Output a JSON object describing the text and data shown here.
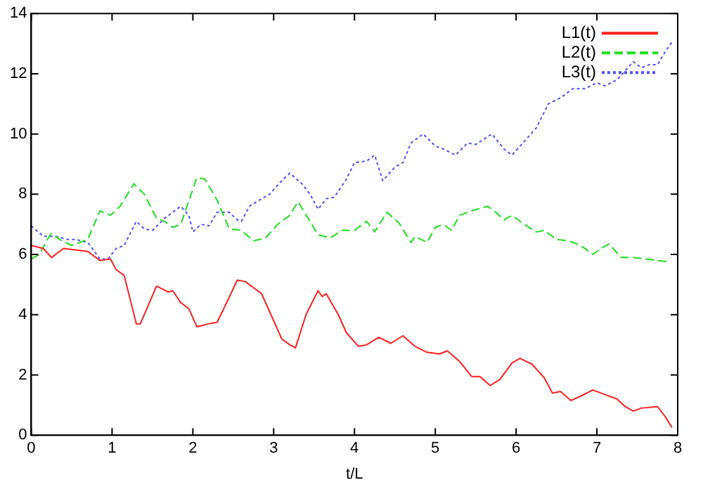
{
  "chart_data": {
    "type": "line",
    "xlabel": "t/L",
    "xlim": [
      0,
      8
    ],
    "xticks": [
      0,
      1,
      2,
      3,
      4,
      5,
      6,
      7,
      8
    ],
    "ylim": [
      0,
      14
    ],
    "yticks": [
      0,
      2,
      4,
      6,
      8,
      10,
      12,
      14
    ],
    "legend": "top right",
    "marker": "none",
    "grid": false,
    "series": [
      {
        "name": "L1(t)",
        "color": "#ff2020",
        "line_style": "solid",
        "x": [
          0,
          0.15,
          0.25,
          0.4,
          0.7,
          0.85,
          0.98,
          1.05,
          1.15,
          1.3,
          1.35,
          1.55,
          1.7,
          1.75,
          1.85,
          1.95,
          2.05,
          2.2,
          2.3,
          2.4,
          2.55,
          2.65,
          2.75,
          2.85,
          3.0,
          3.1,
          3.2,
          3.27,
          3.4,
          3.55,
          3.6,
          3.65,
          3.8,
          3.9,
          4.05,
          4.15,
          4.3,
          4.45,
          4.6,
          4.75,
          4.9,
          5.05,
          5.15,
          5.3,
          5.45,
          5.55,
          5.68,
          5.8,
          5.95,
          6.05,
          6.2,
          6.35,
          6.45,
          6.55,
          6.68,
          6.8,
          6.95,
          7.1,
          7.25,
          7.35,
          7.45,
          7.55,
          7.75,
          7.85,
          7.93
        ],
        "values": [
          6.3,
          6.2,
          5.9,
          6.2,
          6.1,
          5.8,
          5.85,
          5.5,
          5.3,
          3.7,
          3.7,
          4.95,
          4.75,
          4.8,
          4.4,
          4.2,
          3.6,
          3.7,
          3.75,
          4.3,
          5.15,
          5.1,
          4.9,
          4.7,
          3.8,
          3.2,
          3.0,
          2.9,
          4.0,
          4.8,
          4.6,
          4.7,
          4.0,
          3.4,
          2.95,
          3.0,
          3.25,
          3.05,
          3.3,
          2.95,
          2.75,
          2.7,
          2.8,
          2.45,
          1.95,
          1.95,
          1.65,
          1.85,
          2.4,
          2.55,
          2.35,
          1.9,
          1.4,
          1.45,
          1.15,
          1.3,
          1.5,
          1.35,
          1.2,
          0.95,
          0.8,
          0.9,
          0.95,
          0.6,
          0.25
        ]
      },
      {
        "name": "L2(t)",
        "color": "#20e020",
        "line_style": "dashed",
        "x": [
          0,
          0.1,
          0.2,
          0.25,
          0.35,
          0.5,
          0.7,
          0.85,
          0.98,
          1.1,
          1.27,
          1.4,
          1.55,
          1.65,
          1.75,
          1.85,
          2.05,
          2.15,
          2.3,
          2.45,
          2.6,
          2.75,
          2.9,
          3.05,
          3.2,
          3.3,
          3.45,
          3.55,
          3.7,
          3.85,
          4.0,
          4.15,
          4.25,
          4.4,
          4.55,
          4.7,
          4.75,
          4.9,
          5.0,
          5.1,
          5.2,
          5.3,
          5.45,
          5.65,
          5.75,
          5.85,
          5.95,
          6.1,
          6.25,
          6.35,
          6.5,
          6.65,
          6.8,
          6.95,
          7.05,
          7.15,
          7.3,
          7.45,
          7.6,
          7.75,
          7.9
        ],
        "values": [
          5.85,
          6.0,
          6.5,
          6.7,
          6.5,
          6.3,
          6.5,
          7.45,
          7.3,
          7.6,
          8.35,
          8.0,
          7.2,
          7.1,
          6.9,
          7.0,
          8.55,
          8.5,
          7.8,
          6.85,
          6.8,
          6.45,
          6.55,
          7.0,
          7.3,
          7.75,
          7.1,
          6.65,
          6.55,
          6.8,
          6.8,
          7.1,
          6.75,
          7.4,
          7.05,
          6.4,
          6.6,
          6.4,
          6.9,
          7.0,
          6.8,
          7.3,
          7.45,
          7.6,
          7.4,
          7.15,
          7.3,
          7.0,
          6.75,
          6.8,
          6.5,
          6.45,
          6.3,
          6.0,
          6.2,
          6.35,
          5.9,
          5.9,
          5.85,
          5.8,
          5.75
        ]
      },
      {
        "name": "L3(t)",
        "color": "#5050ff",
        "line_style": "dotted",
        "x": [
          0,
          0.15,
          0.3,
          0.45,
          0.55,
          0.7,
          0.85,
          0.95,
          1.05,
          1.15,
          1.3,
          1.4,
          1.5,
          1.65,
          1.85,
          1.95,
          2.0,
          2.1,
          2.2,
          2.3,
          2.45,
          2.55,
          2.6,
          2.7,
          2.85,
          2.95,
          3.1,
          3.2,
          3.35,
          3.45,
          3.55,
          3.65,
          3.75,
          3.9,
          4.0,
          4.15,
          4.25,
          4.35,
          4.5,
          4.6,
          4.7,
          4.85,
          5.0,
          5.1,
          5.25,
          5.4,
          5.5,
          5.7,
          5.85,
          5.95,
          6.1,
          6.25,
          6.4,
          6.55,
          6.7,
          6.85,
          7.0,
          7.1,
          7.25,
          7.35,
          7.45,
          7.55,
          7.65,
          7.75,
          7.85,
          7.93
        ],
        "values": [
          6.95,
          6.6,
          6.6,
          6.5,
          6.5,
          6.4,
          5.85,
          5.85,
          6.2,
          6.3,
          7.1,
          6.85,
          6.8,
          7.2,
          7.6,
          7.3,
          6.75,
          7.0,
          6.95,
          7.4,
          7.4,
          7.15,
          7.1,
          7.6,
          7.85,
          8.0,
          8.45,
          8.7,
          8.35,
          8.0,
          7.5,
          7.85,
          7.9,
          8.5,
          9.05,
          9.1,
          9.3,
          8.45,
          8.9,
          9.05,
          9.7,
          10.0,
          9.6,
          9.5,
          9.3,
          9.7,
          9.65,
          10.0,
          9.5,
          9.3,
          9.75,
          10.2,
          11.0,
          11.2,
          11.5,
          11.5,
          11.7,
          11.6,
          11.8,
          12.1,
          12.4,
          12.2,
          12.3,
          12.3,
          12.75,
          13.05
        ]
      }
    ]
  }
}
